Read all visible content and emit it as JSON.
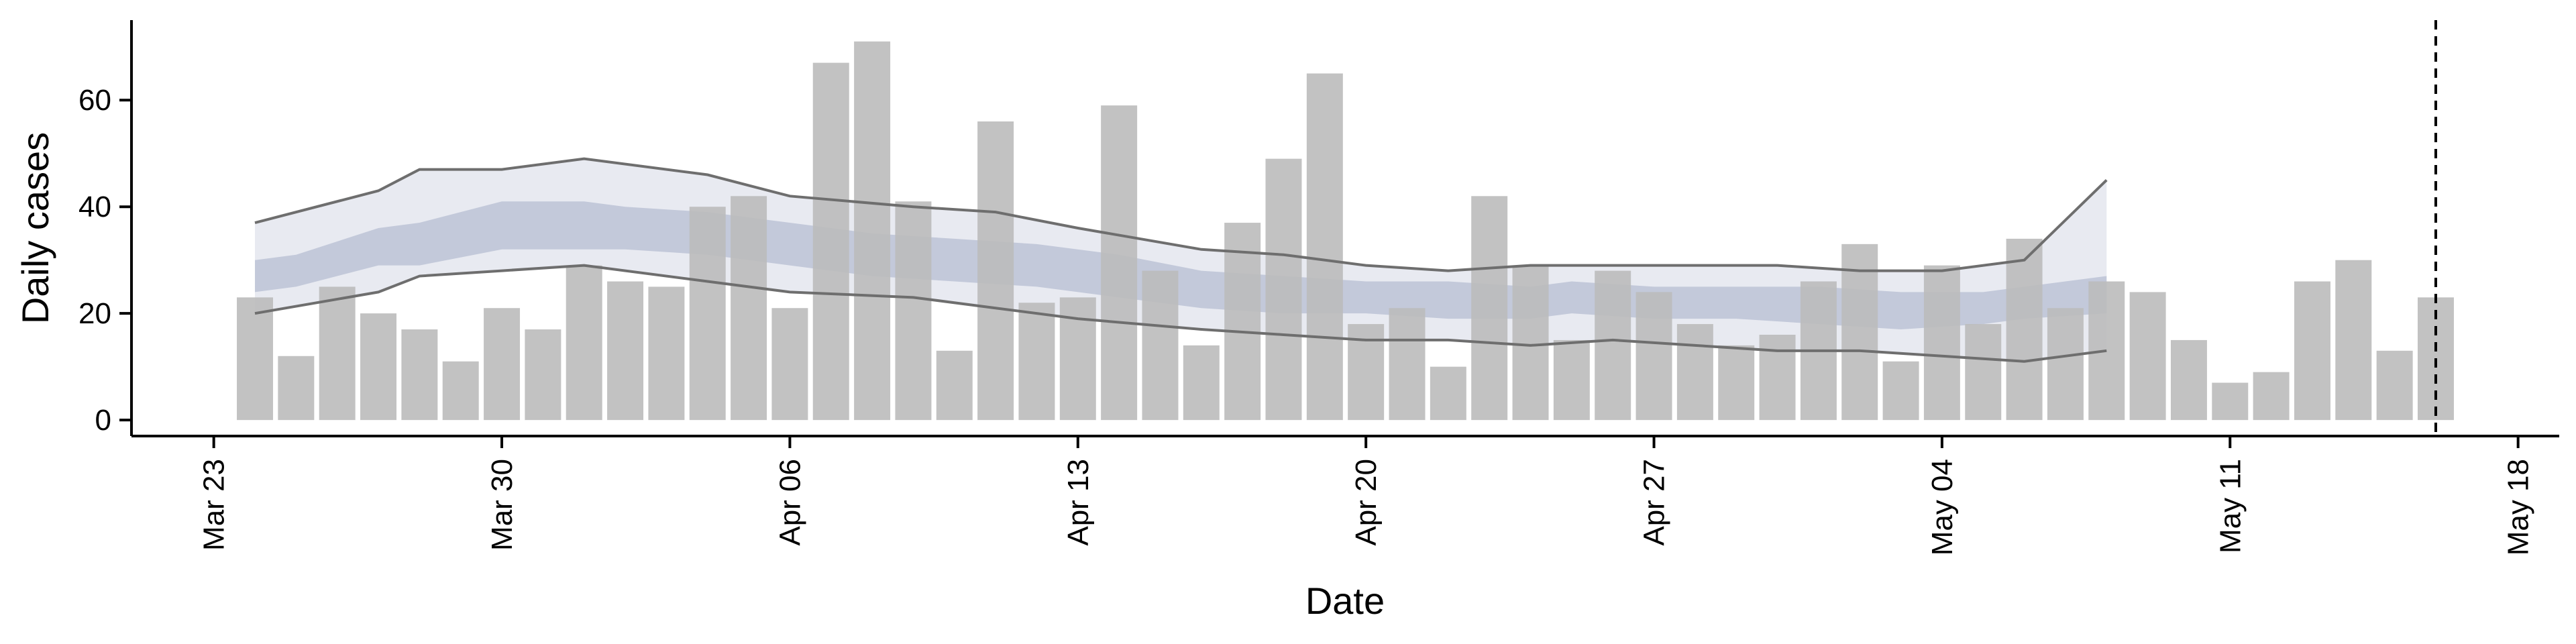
{
  "chart_data": {
    "type": "bar",
    "title": "",
    "xlabel": "Date",
    "ylabel": "Daily cases",
    "xlim": [
      "2020-03-21",
      "2020-05-19"
    ],
    "ylim": [
      -3,
      75
    ],
    "x_ticks": [
      {
        "date": "2020-03-23",
        "label": "Mar 23"
      },
      {
        "date": "2020-03-30",
        "label": "Mar 30"
      },
      {
        "date": "2020-04-06",
        "label": "Apr 06"
      },
      {
        "date": "2020-04-13",
        "label": "Apr 13"
      },
      {
        "date": "2020-04-20",
        "label": "Apr 20"
      },
      {
        "date": "2020-04-27",
        "label": "Apr 27"
      },
      {
        "date": "2020-05-04",
        "label": "May 04"
      },
      {
        "date": "2020-05-11",
        "label": "May 11"
      },
      {
        "date": "2020-05-18",
        "label": "May 18"
      }
    ],
    "y_ticks": [
      0,
      20,
      40,
      60
    ],
    "vline_date": "2020-05-16",
    "series": [
      {
        "type": "bar",
        "color": "#bbbbbb",
        "x": [
          "2020-03-24",
          "2020-03-25",
          "2020-03-26",
          "2020-03-27",
          "2020-03-28",
          "2020-03-29",
          "2020-03-30",
          "2020-03-31",
          "2020-04-01",
          "2020-04-02",
          "2020-04-03",
          "2020-04-04",
          "2020-04-05",
          "2020-04-06",
          "2020-04-07",
          "2020-04-08",
          "2020-04-09",
          "2020-04-10",
          "2020-04-11",
          "2020-04-12",
          "2020-04-13",
          "2020-04-14",
          "2020-04-15",
          "2020-04-16",
          "2020-04-17",
          "2020-04-18",
          "2020-04-19",
          "2020-04-20",
          "2020-04-21",
          "2020-04-22",
          "2020-04-23",
          "2020-04-24",
          "2020-04-25",
          "2020-04-26",
          "2020-04-27",
          "2020-04-28",
          "2020-04-29",
          "2020-04-30",
          "2020-05-01",
          "2020-05-02",
          "2020-05-03",
          "2020-05-04",
          "2020-05-05",
          "2020-05-06",
          "2020-05-07",
          "2020-05-08",
          "2020-05-09",
          "2020-05-10",
          "2020-05-11",
          "2020-05-12",
          "2020-05-13",
          "2020-05-14",
          "2020-05-15",
          "2020-05-16"
        ],
        "values": [
          23,
          12,
          25,
          20,
          17,
          11,
          21,
          17,
          29,
          26,
          25,
          40,
          42,
          21,
          67,
          71,
          41,
          13,
          56,
          22,
          23,
          59,
          28,
          14,
          37,
          49,
          65,
          18,
          21,
          10,
          42,
          29,
          15,
          28,
          24,
          18,
          14,
          16,
          26,
          33,
          11,
          29,
          18,
          34,
          21,
          26,
          24,
          15,
          7,
          9,
          26,
          30,
          13,
          23
        ]
      },
      {
        "type": "band",
        "name": "outer",
        "color": "#e8eaf1",
        "x": [
          "2020-03-24",
          "2020-03-27",
          "2020-03-28",
          "2020-03-30",
          "2020-04-01",
          "2020-04-04",
          "2020-04-06",
          "2020-04-09",
          "2020-04-11",
          "2020-04-13",
          "2020-04-16",
          "2020-04-18",
          "2020-04-20",
          "2020-04-22",
          "2020-04-24",
          "2020-04-26",
          "2020-04-28",
          "2020-04-30",
          "2020-05-02",
          "2020-05-04",
          "2020-05-06",
          "2020-05-08"
        ],
        "low": [
          20,
          24,
          27,
          28,
          29,
          26,
          24,
          23,
          21,
          19,
          17,
          16,
          15,
          15,
          14,
          15,
          14,
          13,
          13,
          12,
          11,
          13
        ],
        "high": [
          37,
          43,
          47,
          47,
          49,
          46,
          42,
          40,
          39,
          36,
          32,
          31,
          29,
          28,
          29,
          29,
          29,
          29,
          28,
          28,
          30,
          45
        ]
      },
      {
        "type": "band",
        "name": "inner",
        "color": "#c3c9da",
        "x": [
          "2020-03-24",
          "2020-03-25",
          "2020-03-27",
          "2020-03-28",
          "2020-03-30",
          "2020-04-01",
          "2020-04-02",
          "2020-04-04",
          "2020-04-06",
          "2020-04-08",
          "2020-04-10",
          "2020-04-12",
          "2020-04-14",
          "2020-04-16",
          "2020-04-18",
          "2020-04-20",
          "2020-04-22",
          "2020-04-24",
          "2020-04-25",
          "2020-04-27",
          "2020-04-29",
          "2020-05-01",
          "2020-05-03",
          "2020-05-05",
          "2020-05-06",
          "2020-05-08"
        ],
        "low": [
          24,
          25,
          29,
          29,
          32,
          32,
          32,
          31,
          29,
          27,
          26,
          25,
          23,
          21,
          20,
          20,
          19,
          19,
          20,
          19,
          19,
          18,
          17,
          18,
          19,
          20
        ],
        "high": [
          30,
          31,
          36,
          37,
          41,
          41,
          40,
          39,
          37,
          35,
          34,
          33,
          31,
          28,
          27,
          26,
          26,
          25,
          26,
          25,
          25,
          25,
          24,
          24,
          25,
          27
        ]
      }
    ]
  }
}
